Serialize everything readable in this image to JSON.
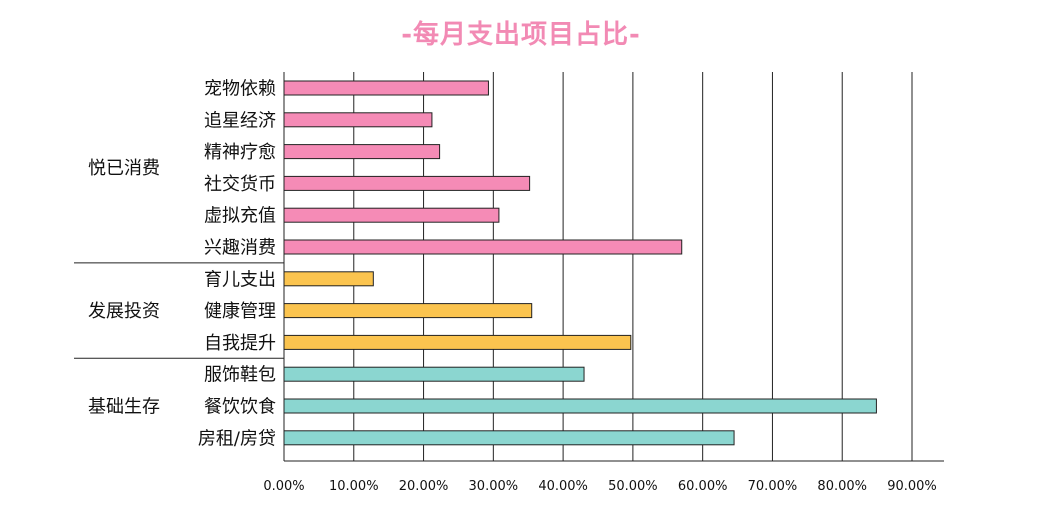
{
  "chart_data": {
    "type": "bar",
    "orientation": "horizontal",
    "title": "-每月支出项目占比-",
    "xlim": [
      0,
      0.9
    ],
    "x_ticks": [
      "0.00%",
      "10.00%",
      "20.00%",
      "30.00%",
      "40.00%",
      "50.00%",
      "60.00%",
      "70.00%",
      "80.00%",
      "90.00%"
    ],
    "grid": "vertical",
    "groups": [
      {
        "name": "悦已消费",
        "color": "#f58bb6",
        "categories": [
          "宠物依赖",
          "追星经济",
          "精神疗愈",
          "社交货币",
          "虚拟充值",
          "兴趣消费"
        ],
        "values": [
          0.293,
          0.212,
          0.223,
          0.352,
          0.308,
          0.57
        ]
      },
      {
        "name": "发展投资",
        "color": "#fbc44f",
        "categories": [
          "育儿支出",
          "健康管理",
          "自我提升"
        ],
        "values": [
          0.128,
          0.355,
          0.497
        ]
      },
      {
        "name": "基础生存",
        "color": "#8bd6d0",
        "categories": [
          "服饰鞋包",
          "餐饮饮食",
          "房租/房贷"
        ],
        "values": [
          0.43,
          0.849,
          0.645
        ]
      }
    ]
  }
}
